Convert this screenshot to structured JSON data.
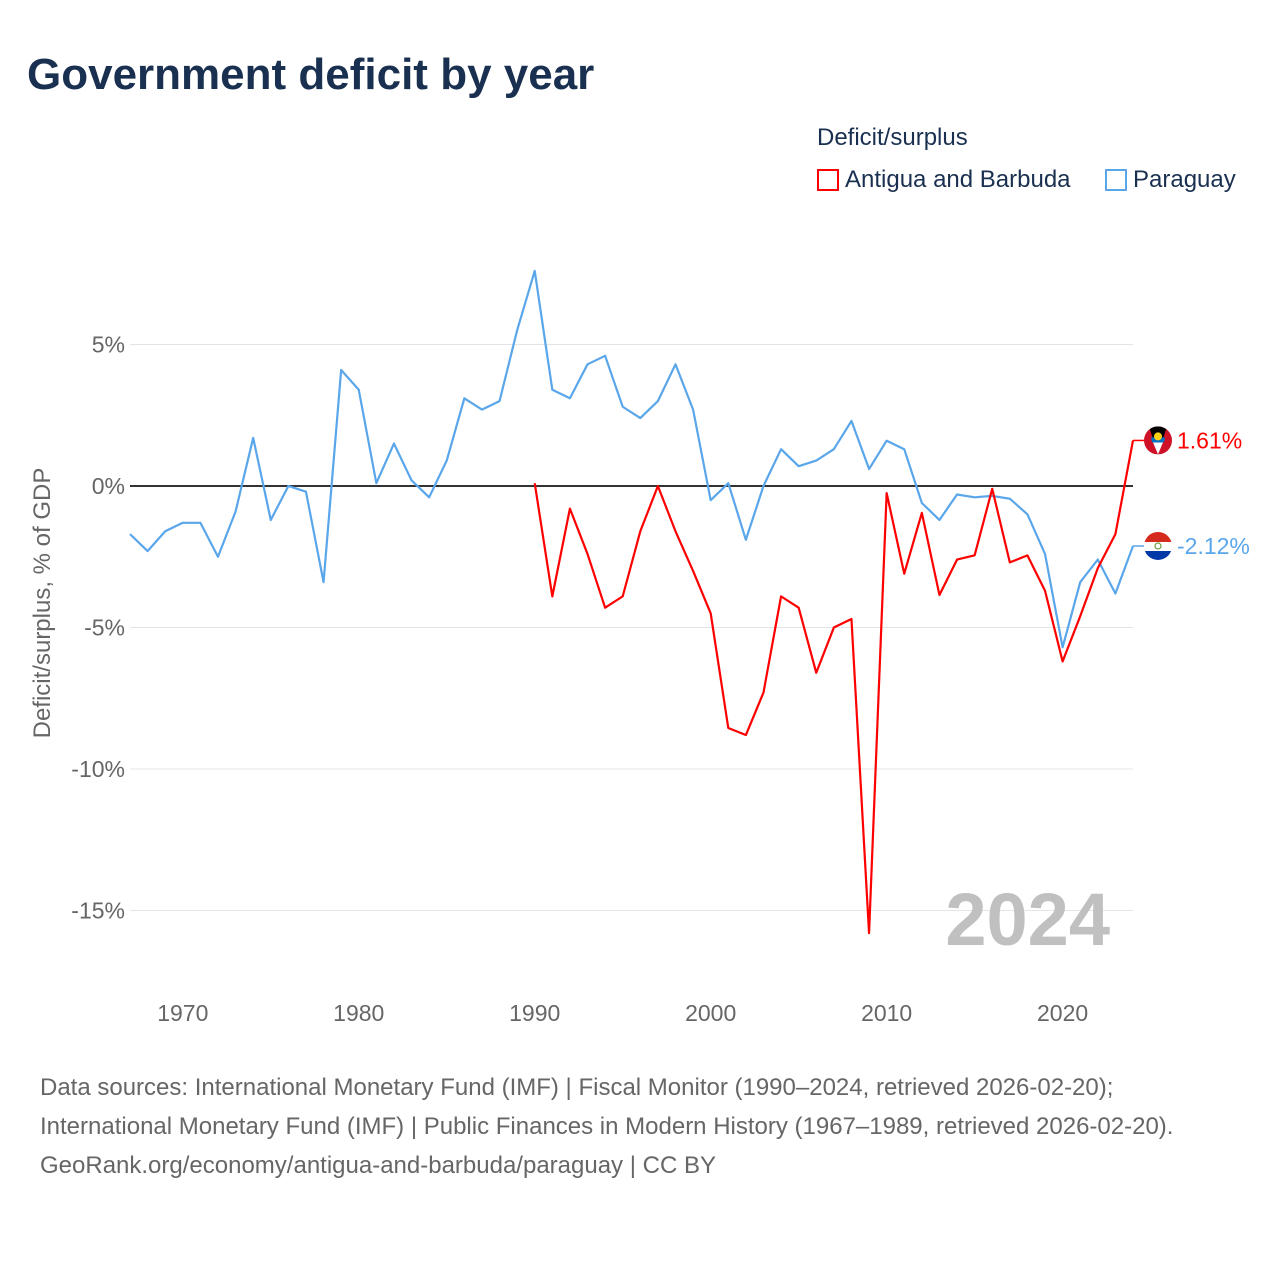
{
  "title": "Government deficit by year",
  "legend": {
    "title": "Deficit/surplus",
    "items": [
      {
        "label": "Antigua and Barbuda",
        "color": "#ff0000"
      },
      {
        "label": "Paraguay",
        "color": "#5aa6ea"
      }
    ]
  },
  "watermark_year": "2024",
  "footer": {
    "sources": "Data sources: International Monetary Fund (IMF) | Fiscal Monitor (1990–2024, retrieved 2026-02-20); International Monetary Fund (IMF) | Public Finances in Modern History (1967–1989, retrieved 2026-02-20).",
    "credit": "GeoRank.org/economy/antigua-and-barbuda/paraguay | CC BY"
  },
  "chart_data": {
    "type": "line",
    "title": "Government deficit by year",
    "xlabel": "",
    "ylabel": "Deficit/surplus, % of GDP",
    "xlim": [
      1967,
      2024
    ],
    "ylim": [
      -17,
      9
    ],
    "x_ticks": [
      1970,
      1980,
      1990,
      2000,
      2010,
      2020
    ],
    "x_tick_labels": [
      "1970",
      "1980",
      "1990",
      "2000",
      "2010",
      "2020"
    ],
    "y_ticks": [
      5,
      0,
      -5,
      -10,
      -15
    ],
    "y_tick_labels": [
      "5%",
      "0%",
      "-5%",
      "-10%",
      "-15%"
    ],
    "grid": true,
    "legend_position": "top-right",
    "series": [
      {
        "name": "Antigua and Barbuda",
        "color": "#ff0000",
        "end_label": "1.61%",
        "start_year": 1990,
        "values": [
          0.1,
          -3.9,
          -0.8,
          -2.4,
          -4.3,
          -3.9,
          -1.6,
          0.0,
          -1.6,
          -3.0,
          -4.5,
          -8.55,
          -8.8,
          -7.3,
          -3.9,
          -4.3,
          -6.6,
          -5.0,
          -4.7,
          -15.8,
          -0.25,
          -3.1,
          -0.95,
          -3.85,
          -2.6,
          -2.45,
          -0.1,
          -2.7,
          -2.45,
          -3.7,
          -6.2,
          -4.6,
          -2.9,
          -1.7,
          1.61
        ]
      },
      {
        "name": "Paraguay",
        "color": "#5aa6ea",
        "end_label": "-2.12%",
        "start_year": 1967,
        "values": [
          -1.7,
          -2.3,
          -1.6,
          -1.3,
          -1.3,
          -2.5,
          -0.9,
          1.7,
          -1.2,
          0.0,
          -0.2,
          -3.4,
          4.1,
          3.4,
          0.1,
          1.5,
          0.2,
          -0.4,
          0.9,
          3.1,
          2.7,
          3.0,
          5.5,
          7.6,
          3.4,
          3.1,
          4.3,
          4.6,
          2.8,
          2.4,
          3.0,
          4.3,
          2.7,
          -0.5,
          0.1,
          -1.9,
          0.0,
          1.3,
          0.7,
          0.9,
          1.3,
          2.3,
          0.6,
          1.6,
          1.3,
          -0.6,
          -1.2,
          -0.3,
          -0.4,
          -0.35,
          -0.45,
          -1.0,
          -2.4,
          -5.7,
          -3.4,
          -2.6,
          -3.8,
          -2.12
        ]
      }
    ]
  }
}
